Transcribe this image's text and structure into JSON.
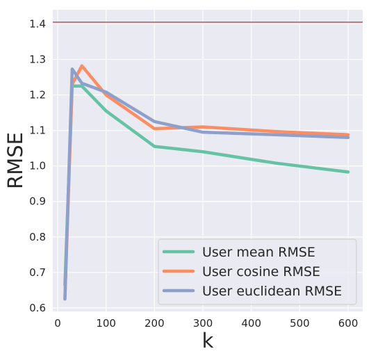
{
  "chart_data": {
    "type": "line",
    "xlabel": "k",
    "ylabel": "RMSE",
    "xlim": [
      -10,
      630
    ],
    "ylim": [
      0.59,
      1.44
    ],
    "xticks": [
      0,
      100,
      200,
      300,
      400,
      500,
      600
    ],
    "yticks": [
      0.6,
      0.7,
      0.8,
      0.9,
      1.0,
      1.1,
      1.2,
      1.3,
      1.4
    ],
    "x": [
      15,
      30,
      50,
      100,
      200,
      300,
      450,
      600
    ],
    "grid": true,
    "legend_position": "lower-right",
    "series": [
      {
        "name": "User mean RMSE",
        "color": "#66c2a5",
        "values": [
          0.665,
          1.225,
          1.225,
          1.155,
          1.055,
          1.04,
          1.008,
          0.983
        ]
      },
      {
        "name": "User cosine RMSE",
        "color": "#fc8d62",
        "values": [
          0.625,
          1.23,
          1.282,
          1.2,
          1.105,
          1.11,
          1.097,
          1.088
        ]
      },
      {
        "name": "User euclidean RMSE",
        "color": "#8da0cb",
        "values": [
          0.625,
          1.273,
          1.233,
          1.208,
          1.125,
          1.095,
          1.088,
          1.08
        ]
      }
    ],
    "reference_lines": [
      {
        "axis": "y",
        "value": 1.405,
        "color": "#c44e52"
      }
    ]
  }
}
